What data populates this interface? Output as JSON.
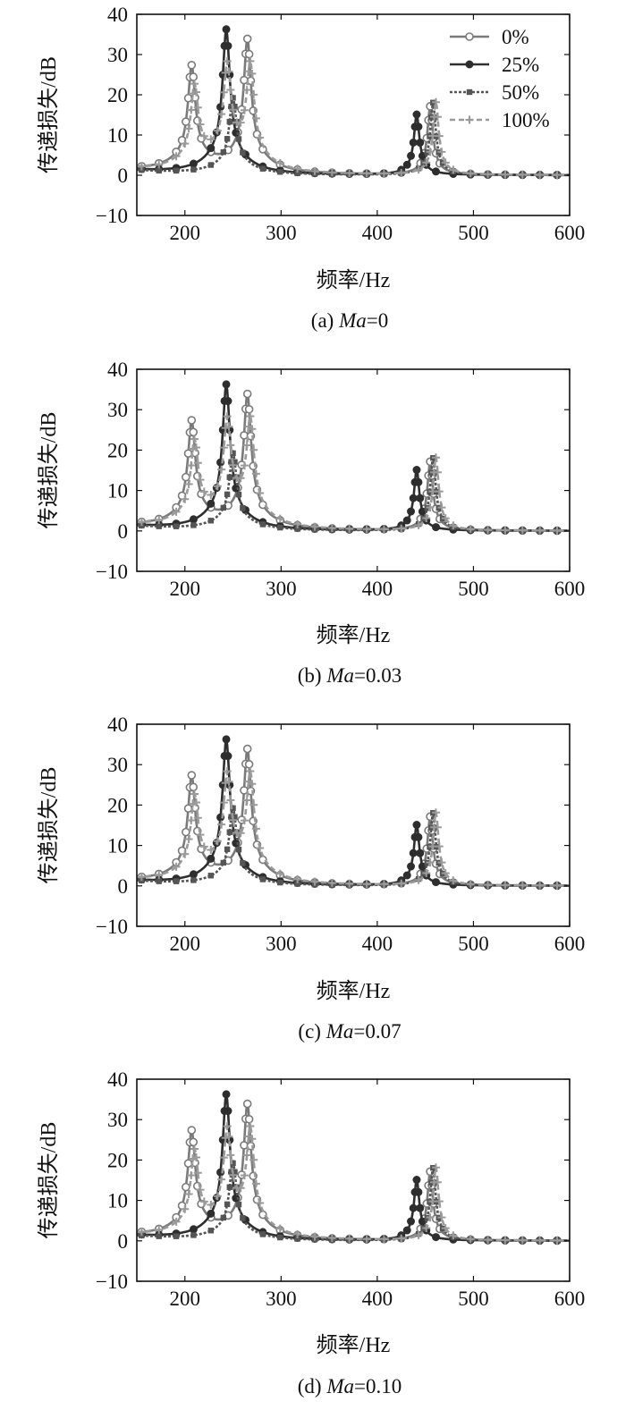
{
  "figure": {
    "panels": [
      {
        "caption_prefix": "(a) ",
        "caption_italic": "Ma",
        "caption_suffix": "=0"
      },
      {
        "caption_prefix": "(b) ",
        "caption_italic": "Ma",
        "caption_suffix": "=0.03"
      },
      {
        "caption_prefix": "(c) ",
        "caption_italic": "Ma",
        "caption_suffix": "=0.07"
      },
      {
        "caption_prefix": "(d) ",
        "caption_italic": "Ma",
        "caption_suffix": "=0.10"
      }
    ]
  },
  "colors": {
    "s0": "#7a7a7a",
    "s25": "#2e2e2e",
    "s50": "#555555",
    "s100": "#9a9a9a",
    "axis": "#111111"
  },
  "chart_data": [
    {
      "type": "line",
      "xlabel": "频率/Hz",
      "ylabel": "传递损失/dB",
      "xlim": [
        150,
        600
      ],
      "ylim": [
        -10,
        40
      ],
      "xticks": [
        200,
        300,
        400,
        500,
        600
      ],
      "yticks": [
        -10,
        0,
        10,
        20,
        30,
        40
      ],
      "legend": "top-right",
      "grid": false,
      "series": [
        {
          "name": "0%",
          "marker": "circle-open",
          "peaks": [
            [
              207,
              26
            ],
            [
              265,
              33
            ],
            [
              455,
              17
            ]
          ]
        },
        {
          "name": "25%",
          "marker": "circle-filled",
          "peaks": [
            [
              243,
              36
            ],
            [
              441,
              15
            ]
          ]
        },
        {
          "name": "50%",
          "marker": "square",
          "peaks": [
            [
              250,
              19
            ],
            [
              458,
              18
            ]
          ]
        },
        {
          "name": "100%",
          "marker": "plus",
          "peaks": [
            [
              210,
              20
            ],
            [
              244,
              24
            ],
            [
              268,
              25
            ],
            [
              461,
              18
            ]
          ]
        }
      ]
    },
    {
      "type": "line",
      "xlabel": "频率/Hz",
      "ylabel": "传递损失/dB",
      "xlim": [
        150,
        600
      ],
      "ylim": [
        -10,
        40
      ],
      "xticks": [
        200,
        300,
        400,
        500,
        600
      ],
      "yticks": [
        -10,
        0,
        10,
        20,
        30,
        40
      ],
      "grid": false,
      "series": [
        {
          "name": "0%",
          "marker": "circle-open",
          "peaks": [
            [
              207,
              26
            ],
            [
              265,
              33
            ],
            [
              455,
              17
            ]
          ]
        },
        {
          "name": "25%",
          "marker": "circle-filled",
          "peaks": [
            [
              243,
              36
            ],
            [
              441,
              15
            ]
          ]
        },
        {
          "name": "50%",
          "marker": "square",
          "peaks": [
            [
              250,
              19
            ],
            [
              458,
              18
            ]
          ]
        },
        {
          "name": "100%",
          "marker": "plus",
          "peaks": [
            [
              210,
              20
            ],
            [
              244,
              24
            ],
            [
              268,
              25
            ],
            [
              461,
              18
            ]
          ]
        }
      ]
    },
    {
      "type": "line",
      "xlabel": "频率/Hz",
      "ylabel": "传递损失/dB",
      "xlim": [
        150,
        600
      ],
      "ylim": [
        -10,
        40
      ],
      "xticks": [
        200,
        300,
        400,
        500,
        600
      ],
      "yticks": [
        -10,
        0,
        10,
        20,
        30,
        40
      ],
      "grid": false,
      "series": [
        {
          "name": "0%",
          "marker": "circle-open",
          "peaks": [
            [
              207,
              26
            ],
            [
              265,
              33
            ],
            [
              455,
              17
            ]
          ]
        },
        {
          "name": "25%",
          "marker": "circle-filled",
          "peaks": [
            [
              243,
              36
            ],
            [
              441,
              15
            ]
          ]
        },
        {
          "name": "50%",
          "marker": "square",
          "peaks": [
            [
              250,
              19
            ],
            [
              458,
              18
            ]
          ]
        },
        {
          "name": "100%",
          "marker": "plus",
          "peaks": [
            [
              210,
              20
            ],
            [
              244,
              24
            ],
            [
              268,
              25
            ],
            [
              461,
              18
            ]
          ]
        }
      ]
    },
    {
      "type": "line",
      "xlabel": "频率/Hz",
      "ylabel": "传递损失/dB",
      "xlim": [
        150,
        600
      ],
      "ylim": [
        -10,
        40
      ],
      "xticks": [
        200,
        300,
        400,
        500,
        600
      ],
      "yticks": [
        -10,
        0,
        10,
        20,
        30,
        40
      ],
      "grid": false,
      "series": [
        {
          "name": "0%",
          "marker": "circle-open",
          "peaks": [
            [
              207,
              26
            ],
            [
              265,
              33
            ],
            [
              455,
              17
            ]
          ]
        },
        {
          "name": "25%",
          "marker": "circle-filled",
          "peaks": [
            [
              243,
              36
            ],
            [
              441,
              15
            ]
          ]
        },
        {
          "name": "50%",
          "marker": "square",
          "peaks": [
            [
              250,
              19
            ],
            [
              458,
              18
            ]
          ]
        },
        {
          "name": "100%",
          "marker": "plus",
          "peaks": [
            [
              210,
              20
            ],
            [
              244,
              24
            ],
            [
              268,
              25
            ],
            [
              461,
              18
            ]
          ]
        }
      ]
    }
  ]
}
